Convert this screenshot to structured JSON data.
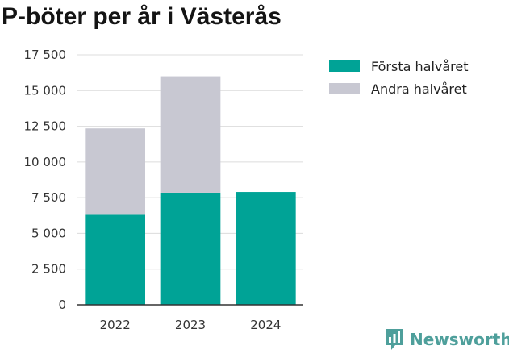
{
  "title": "P-böter per år i Västerås",
  "chart_data": {
    "type": "bar",
    "stacked": true,
    "categories": [
      "2022",
      "2023",
      "2024"
    ],
    "series": [
      {
        "name": "Första halvåret",
        "color": "#00a396",
        "values": [
          6300,
          7850,
          7900
        ]
      },
      {
        "name": "Andra halvåret",
        "color": "#c8c8d2",
        "values": [
          6050,
          8150,
          0
        ]
      }
    ],
    "ylim": [
      0,
      17500
    ],
    "yticks": [
      0,
      2500,
      5000,
      7500,
      10000,
      12500,
      15000,
      17500
    ],
    "ytick_labels": [
      "0",
      "2 500",
      "5 000",
      "7 500",
      "10 000",
      "12 500",
      "15 000",
      "17 500"
    ],
    "grid": true,
    "legend_position": "right"
  },
  "brand": {
    "name": "Newsworthy",
    "icon": "newsworthy-logo-icon",
    "color": "#4e9f9b"
  }
}
